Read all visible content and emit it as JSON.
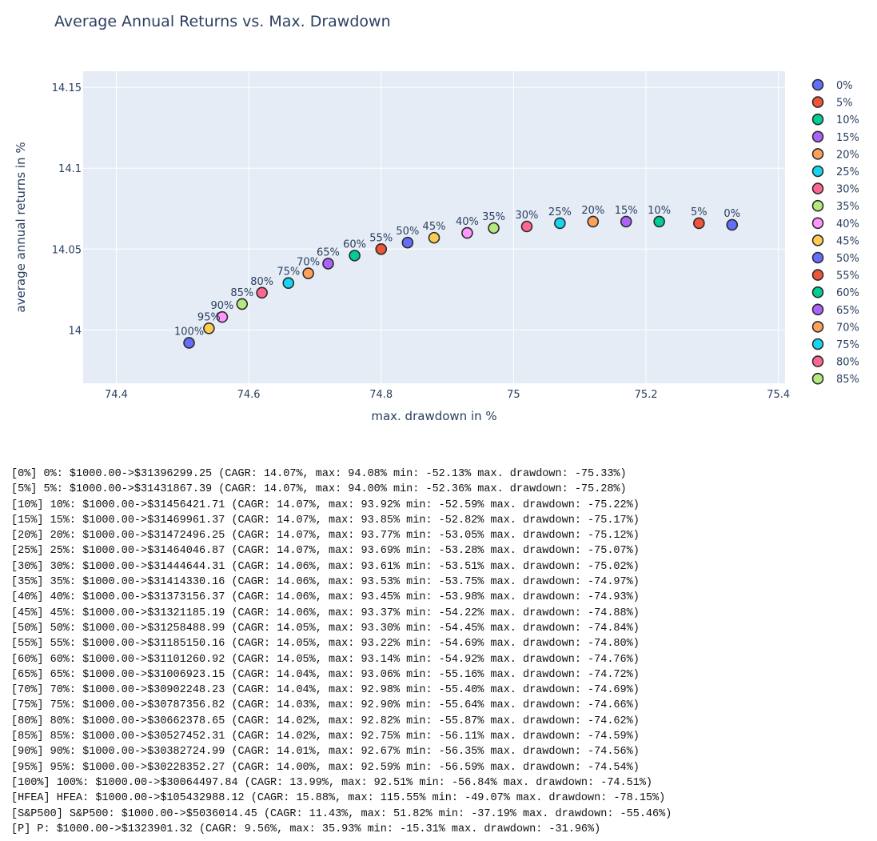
{
  "chart_data": {
    "type": "scatter",
    "title": "Average Annual Returns vs. Max. Drawdown",
    "xlabel": "max. drawdown in %",
    "ylabel": "average annual returns in %",
    "xlim": [
      74.35,
      75.41
    ],
    "ylim": [
      13.967,
      14.16
    ],
    "x_ticks": [
      74.4,
      74.6,
      74.8,
      75,
      75.2,
      75.4
    ],
    "x_tick_labels": [
      "74.4",
      "74.6",
      "74.8",
      "75",
      "75.2",
      "75.4"
    ],
    "y_ticks": [
      14,
      14.05,
      14.1,
      14.15
    ],
    "y_tick_labels": [
      "14",
      "14.05",
      "14.1",
      "14.15"
    ],
    "grid": true,
    "legend_position": "right",
    "background": "#e5ecf6",
    "series": [
      {
        "name": "0%",
        "label": "0%",
        "x": 75.33,
        "y": 14.065,
        "color": "#636efa"
      },
      {
        "name": "5%",
        "label": "5%",
        "x": 75.28,
        "y": 14.066,
        "color": "#EF553B"
      },
      {
        "name": "10%",
        "label": "10%",
        "x": 75.22,
        "y": 14.067,
        "color": "#00cc96"
      },
      {
        "name": "15%",
        "label": "15%",
        "x": 75.17,
        "y": 14.067,
        "color": "#ab63fa"
      },
      {
        "name": "20%",
        "label": "20%",
        "x": 75.12,
        "y": 14.067,
        "color": "#FFA15A"
      },
      {
        "name": "25%",
        "label": "25%",
        "x": 75.07,
        "y": 14.066,
        "color": "#19d3f3"
      },
      {
        "name": "30%",
        "label": "30%",
        "x": 75.02,
        "y": 14.064,
        "color": "#FF6692"
      },
      {
        "name": "35%",
        "label": "35%",
        "x": 74.97,
        "y": 14.063,
        "color": "#B6E880"
      },
      {
        "name": "40%",
        "label": "40%",
        "x": 74.93,
        "y": 14.06,
        "color": "#FF97FF"
      },
      {
        "name": "45%",
        "label": "45%",
        "x": 74.88,
        "y": 14.057,
        "color": "#FECB52"
      },
      {
        "name": "50%",
        "label": "50%",
        "x": 74.84,
        "y": 14.054,
        "color": "#636efa"
      },
      {
        "name": "55%",
        "label": "55%",
        "x": 74.8,
        "y": 14.05,
        "color": "#EF553B"
      },
      {
        "name": "60%",
        "label": "60%",
        "x": 74.76,
        "y": 14.046,
        "color": "#00cc96"
      },
      {
        "name": "65%",
        "label": "65%",
        "x": 74.72,
        "y": 14.041,
        "color": "#ab63fa"
      },
      {
        "name": "70%",
        "label": "70%",
        "x": 74.69,
        "y": 14.035,
        "color": "#FFA15A"
      },
      {
        "name": "75%",
        "label": "75%",
        "x": 74.66,
        "y": 14.029,
        "color": "#19d3f3"
      },
      {
        "name": "80%",
        "label": "80%",
        "x": 74.62,
        "y": 14.023,
        "color": "#FF6692"
      },
      {
        "name": "85%",
        "label": "85%",
        "x": 74.59,
        "y": 14.016,
        "color": "#B6E880"
      },
      {
        "name": "90%",
        "label": "90%",
        "x": 74.56,
        "y": 14.008,
        "color": "#FF97FF"
      },
      {
        "name": "95%",
        "label": "95%",
        "x": 74.54,
        "y": 14.001,
        "color": "#FECB52"
      },
      {
        "name": "100%",
        "label": "100%",
        "x": 74.51,
        "y": 13.992,
        "color": "#636efa"
      }
    ],
    "legend_visible_count": 18
  },
  "log_lines": [
    "[0%] 0%: $1000.00->$31396299.25 (CAGR: 14.07%, max: 94.08% min: -52.13% max. drawdown: -75.33%)",
    "[5%] 5%: $1000.00->$31431867.39 (CAGR: 14.07%, max: 94.00% min: -52.36% max. drawdown: -75.28%)",
    "[10%] 10%: $1000.00->$31456421.71 (CAGR: 14.07%, max: 93.92% min: -52.59% max. drawdown: -75.22%)",
    "[15%] 15%: $1000.00->$31469961.37 (CAGR: 14.07%, max: 93.85% min: -52.82% max. drawdown: -75.17%)",
    "[20%] 20%: $1000.00->$31472496.25 (CAGR: 14.07%, max: 93.77% min: -53.05% max. drawdown: -75.12%)",
    "[25%] 25%: $1000.00->$31464046.87 (CAGR: 14.07%, max: 93.69% min: -53.28% max. drawdown: -75.07%)",
    "[30%] 30%: $1000.00->$31444644.31 (CAGR: 14.06%, max: 93.61% min: -53.51% max. drawdown: -75.02%)",
    "[35%] 35%: $1000.00->$31414330.16 (CAGR: 14.06%, max: 93.53% min: -53.75% max. drawdown: -74.97%)",
    "[40%] 40%: $1000.00->$31373156.37 (CAGR: 14.06%, max: 93.45% min: -53.98% max. drawdown: -74.93%)",
    "[45%] 45%: $1000.00->$31321185.19 (CAGR: 14.06%, max: 93.37% min: -54.22% max. drawdown: -74.88%)",
    "[50%] 50%: $1000.00->$31258488.99 (CAGR: 14.05%, max: 93.30% min: -54.45% max. drawdown: -74.84%)",
    "[55%] 55%: $1000.00->$31185150.16 (CAGR: 14.05%, max: 93.22% min: -54.69% max. drawdown: -74.80%)",
    "[60%] 60%: $1000.00->$31101260.92 (CAGR: 14.05%, max: 93.14% min: -54.92% max. drawdown: -74.76%)",
    "[65%] 65%: $1000.00->$31006923.15 (CAGR: 14.04%, max: 93.06% min: -55.16% max. drawdown: -74.72%)",
    "[70%] 70%: $1000.00->$30902248.23 (CAGR: 14.04%, max: 92.98% min: -55.40% max. drawdown: -74.69%)",
    "[75%] 75%: $1000.00->$30787356.82 (CAGR: 14.03%, max: 92.90% min: -55.64% max. drawdown: -74.66%)",
    "[80%] 80%: $1000.00->$30662378.65 (CAGR: 14.02%, max: 92.82% min: -55.87% max. drawdown: -74.62%)",
    "[85%] 85%: $1000.00->$30527452.31 (CAGR: 14.02%, max: 92.75% min: -56.11% max. drawdown: -74.59%)",
    "[90%] 90%: $1000.00->$30382724.99 (CAGR: 14.01%, max: 92.67% min: -56.35% max. drawdown: -74.56%)",
    "[95%] 95%: $1000.00->$30228352.27 (CAGR: 14.00%, max: 92.59% min: -56.59% max. drawdown: -74.54%)",
    "[100%] 100%: $1000.00->$30064497.84 (CAGR: 13.99%, max: 92.51% min: -56.84% max. drawdown: -74.51%)",
    "[HFEA] HFEA: $1000.00->$105432988.12 (CAGR: 15.88%, max: 115.55% min: -49.07% max. drawdown: -78.15%)",
    "[S&P500] S&P500: $1000.00->$5036014.45 (CAGR: 11.43%, max: 51.82% min: -37.19% max. drawdown: -55.46%)",
    "[P] P: $1000.00->$1323901.32 (CAGR: 9.56%, max: 35.93% min: -15.31% max. drawdown: -31.96%)"
  ]
}
